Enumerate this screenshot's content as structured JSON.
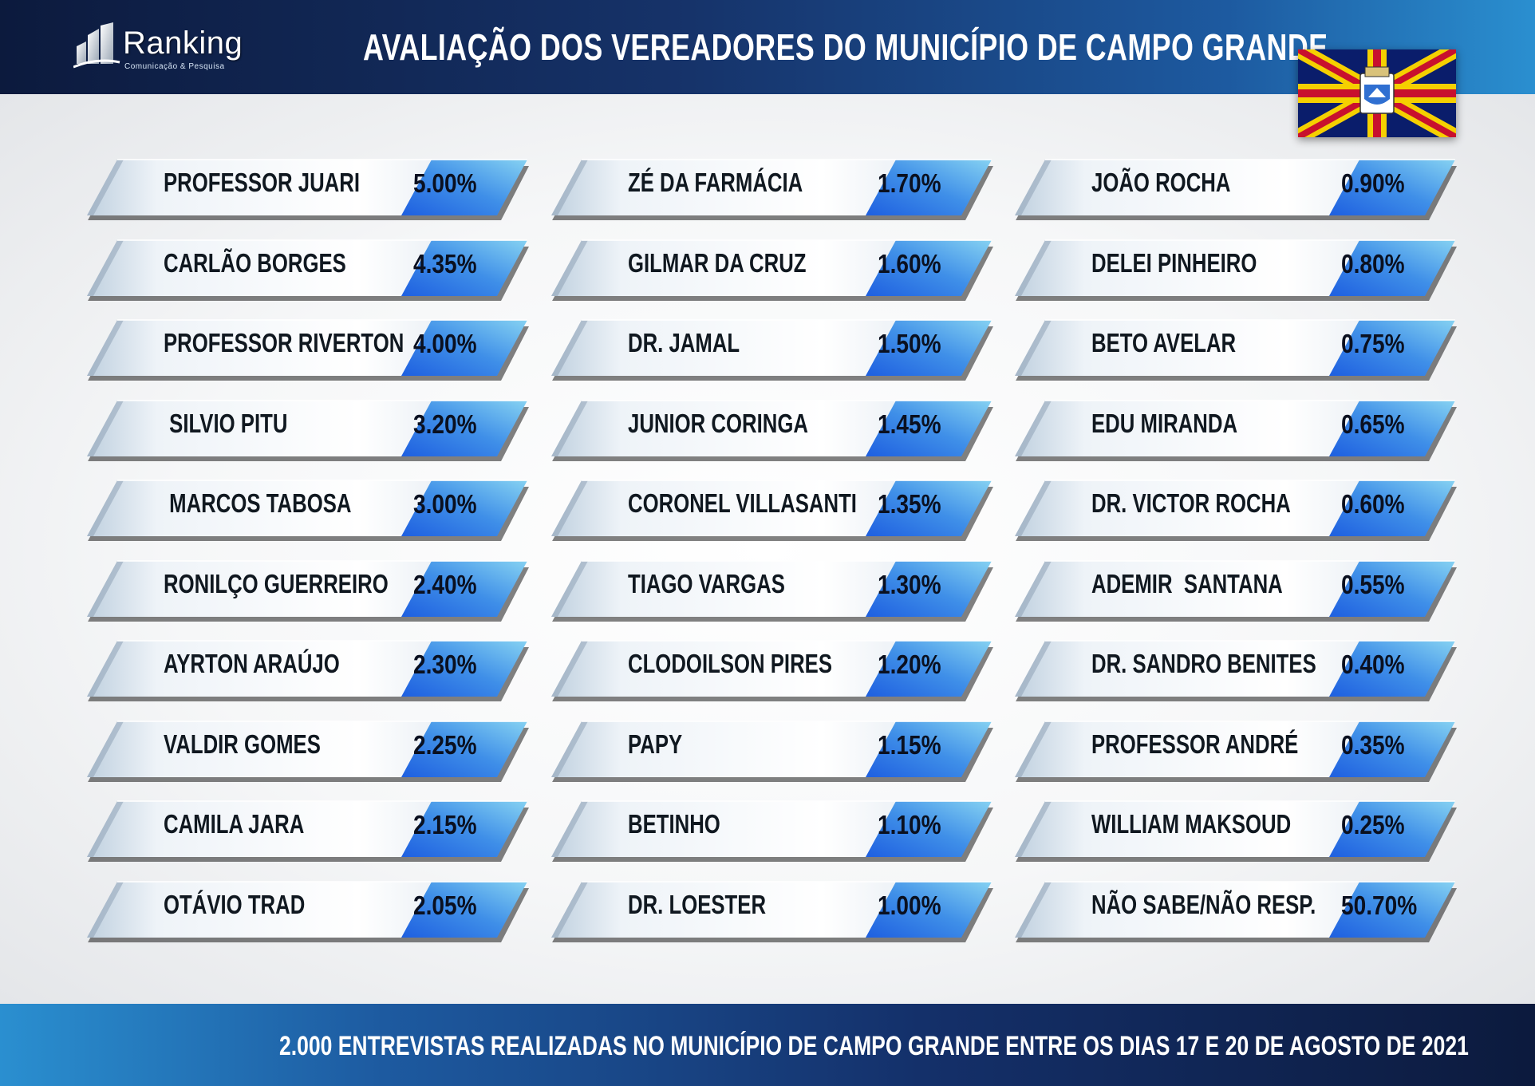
{
  "header": {
    "logo_name": "Ranking",
    "logo_tagline": "Comunicação & Pesquisa",
    "title": "AVALIAÇÃO DOS VEREADORES DO MUNICÍPIO DE CAMPO GRANDE"
  },
  "colors": {
    "header_dark": "#0c1a3d",
    "header_light": "#2a8fd0",
    "ribbon_light": "#eef2f6",
    "ribbon_accent": "#1e6fe0",
    "ribbon_accent_light": "#5fb8ea",
    "flag_blue": "#0a1d6b",
    "flag_red": "#c8102e",
    "flag_yellow": "#f5d000"
  },
  "columns": [
    [
      {
        "name": "PROFESSOR JUARI",
        "value": "5.00%"
      },
      {
        "name": "CARLÃO BORGES",
        "value": "4.35%"
      },
      {
        "name": "PROFESSOR RIVERTON",
        "value": "4.00%"
      },
      {
        "name": " SILVIO PITU",
        "value": "3.20%"
      },
      {
        "name": " MARCOS TABOSA",
        "value": "3.00%"
      },
      {
        "name": "RONILÇO GUERREIRO",
        "value": "2.40%"
      },
      {
        "name": "AYRTON ARAÚJO",
        "value": "2.30%"
      },
      {
        "name": "VALDIR GOMES",
        "value": "2.25%"
      },
      {
        "name": "CAMILA JARA",
        "value": "2.15%"
      },
      {
        "name": "OTÁVIO TRAD",
        "value": "2.05%"
      }
    ],
    [
      {
        "name": "ZÉ DA FARMÁCIA",
        "value": "1.70%"
      },
      {
        "name": "GILMAR DA CRUZ",
        "value": "1.60%"
      },
      {
        "name": "DR. JAMAL",
        "value": "1.50%"
      },
      {
        "name": "JUNIOR CORINGA",
        "value": "1.45%"
      },
      {
        "name": "CORONEL VILLASANTI",
        "value": "1.35%"
      },
      {
        "name": "TIAGO VARGAS",
        "value": "1.30%"
      },
      {
        "name": "CLODOILSON PIRES",
        "value": "1.20%"
      },
      {
        "name": "PAPY",
        "value": "1.15%"
      },
      {
        "name": "BETINHO",
        "value": "1.10%"
      },
      {
        "name": "DR. LOESTER",
        "value": "1.00%"
      }
    ],
    [
      {
        "name": "JOÃO ROCHA",
        "value": "0.90%"
      },
      {
        "name": "DELEI PINHEIRO",
        "value": "0.80%"
      },
      {
        "name": "BETO AVELAR",
        "value": "0.75%"
      },
      {
        "name": "EDU MIRANDA",
        "value": "0.65%"
      },
      {
        "name": "DR. VICTOR ROCHA",
        "value": "0.60%"
      },
      {
        "name": "ADEMIR  SANTANA",
        "value": "0.55%"
      },
      {
        "name": "DR. SANDRO BENITES",
        "value": "0.40%"
      },
      {
        "name": "PROFESSOR ANDRÉ",
        "value": "0.35%"
      },
      {
        "name": "WILLIAM MAKSOUD",
        "value": "0.25%"
      },
      {
        "name": "NÃO SABE/NÃO RESP.",
        "value": "50.70%"
      }
    ]
  ],
  "footer": {
    "text": "2.000 ENTREVISTAS REALIZADAS NO MUNICÍPIO DE CAMPO GRANDE ENTRE OS DIAS 17 E 20 DE AGOSTO DE 2021"
  }
}
